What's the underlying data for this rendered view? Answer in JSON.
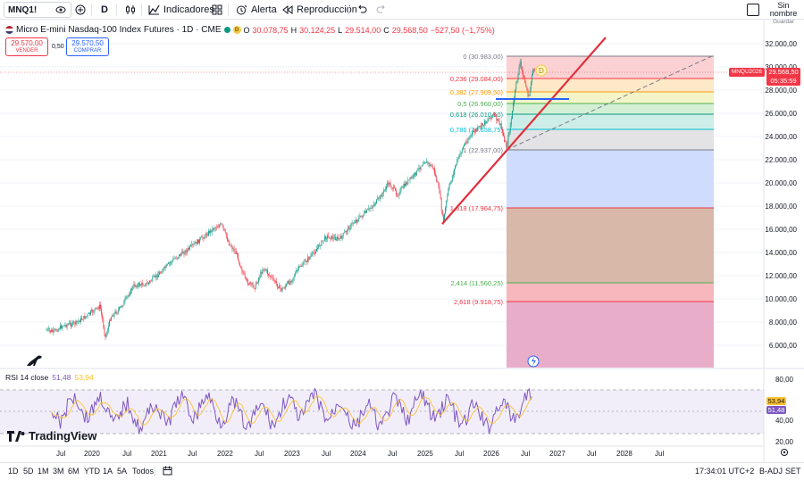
{
  "toolbar": {
    "symbol": "MNQ1!",
    "interval": "D",
    "indicators_label": "Indicadores",
    "alert_label": "Alerta",
    "replay_label": "Reproducción",
    "unnamed_label": "Sin nombre",
    "saved_label": "Guardar"
  },
  "legend": {
    "title": "Micro E-mini Nasdaq-100 Index Futures · 1D · CME",
    "o_label": "O",
    "o_value": "30.078,75",
    "h_label": "H",
    "h_value": "30.124,25",
    "l_label": "L",
    "l_value": "29.514,00",
    "c_label": "C",
    "c_value": "29.568,50",
    "change": "−527,50 (−1,75%)",
    "sell_price": "29.570,00",
    "sell_label": "VENDER",
    "spread": "0,50",
    "buy_price": "29.570,50",
    "buy_label": "COMPRAR"
  },
  "price_axis": {
    "ticks": [
      "32.000,00",
      "30.000,00",
      "28.000,00",
      "26.000,00",
      "24.000,00",
      "22.000,00",
      "20.000,00",
      "18.000,00",
      "16.000,00",
      "14.000,00",
      "12.000,00",
      "10.000,00",
      "8.000,00",
      "6.000,00"
    ],
    "symbol_tag": "MNQU2026",
    "price_tag": "29.568,50",
    "countdown_tag": "05:35:59"
  },
  "fib_levels": [
    {
      "label": "0 (30.983,00)",
      "color": "#787b86"
    },
    {
      "label": "0,236 (29.084,00)",
      "color": "#f23645"
    },
    {
      "label": "0,382 (27.909,50)",
      "color": "#ff9800"
    },
    {
      "label": "0,5 (26.960,00)",
      "color": "#4caf50"
    },
    {
      "label": "0,618 (26.010,50)",
      "color": "#089981"
    },
    {
      "label": "0,786 (24.658,75)",
      "color": "#00bcd4"
    },
    {
      "label": "1 (22.937,00)",
      "color": "#787b86"
    },
    {
      "label": "1,618 (17.964,75)",
      "color": "#f23645"
    },
    {
      "label": "2,414 (11.560,25)",
      "color": "#4caf50"
    },
    {
      "label": "2,618 (9.918,75)",
      "color": "#f23645"
    }
  ],
  "rsi": {
    "label": "RSI 14 close",
    "value1": "51,48",
    "value2": "53,94",
    "ticks": [
      "80,00",
      "60,00",
      "40,00",
      "20,00"
    ],
    "tag_upper": "53,94",
    "tag_lower": "51,48"
  },
  "time_axis": [
    "Jul",
    "2020",
    "Jul",
    "2021",
    "Jul",
    "2022",
    "Jul",
    "2023",
    "Jul",
    "2024",
    "Jul",
    "2025",
    "Jul",
    "2026",
    "Jul",
    "2027",
    "Jul",
    "2028",
    "Jul"
  ],
  "bottom": {
    "ranges": [
      "1D",
      "5D",
      "1M",
      "3M",
      "6M",
      "YTD",
      "1A",
      "5A",
      "Todos"
    ],
    "clock": "17:34:01 UTC+2",
    "adj": "B-ADJ",
    "session": "SET"
  },
  "watermark": "TradingView",
  "dividend_marker": "D",
  "colors": {
    "up": "#089981",
    "down": "#f23645",
    "trendline": "#e0303c",
    "rsi_line": "#7e57c2",
    "rsi_ma": "#fbc02d"
  }
}
